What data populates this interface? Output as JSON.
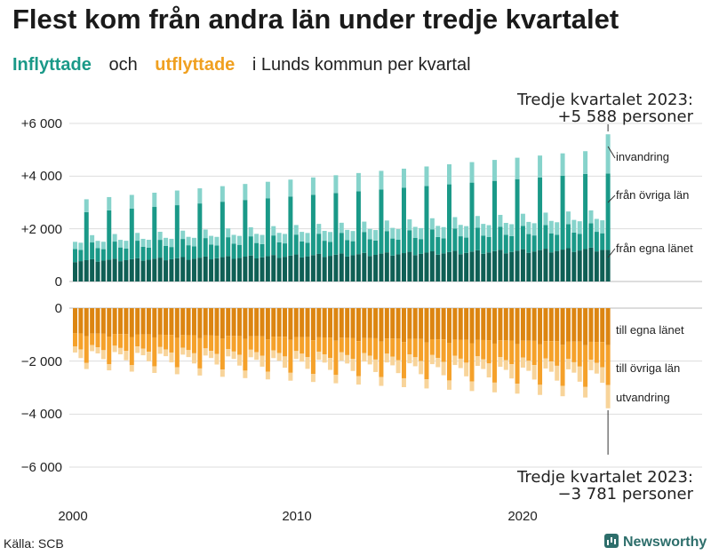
{
  "title": "Flest kom från andra län under tredje kvartalet",
  "subtitle": {
    "in_word": "Inflyttade",
    "and_word": "och",
    "out_word": "utflyttade",
    "rest": "i Lunds  kommun  per  kvartal"
  },
  "source": "Källa: SCB",
  "brand": "Newsworthy",
  "colors": {
    "in_egna": "#0f5f55",
    "in_ovriga": "#1a9988",
    "in_invandring": "#86d3cb",
    "out_egna": "#dc8511",
    "out_ovriga": "#f5a12a",
    "out_utvandring": "#f8d49a",
    "grid": "#dddddd"
  },
  "chart_data": {
    "type": "bar",
    "stacked": true,
    "x": [
      "2000 Q1",
      "2023 Q3"
    ],
    "x_tick_labels": [
      "2000",
      "2010",
      "2020"
    ],
    "y_tick_labels_top": [
      "+6 000",
      "+4 000",
      "+2 000",
      "0"
    ],
    "y_tick_labels_bottom": [
      "0",
      "−2 000",
      "−4 000",
      "−6 000"
    ],
    "ylim_in": [
      0,
      6000
    ],
    "ylim_out": [
      -6000,
      0
    ],
    "series_in_labels": [
      "från egna länet",
      "från övriga län",
      "invandring"
    ],
    "series_out_labels": [
      "till egna länet",
      "till övriga län",
      "utvandring"
    ],
    "annotation_in": {
      "line1": "Tredje kvartalet 2023:",
      "line2": "+5 588 personer",
      "total": 5588
    },
    "annotation_out": {
      "line1": "Tredje kvartalet 2023:",
      "line2": "−3 781 personer",
      "total": -3781
    },
    "trend_in": {
      "egna": [
        800,
        1250
      ],
      "ovriga_base": [
        500,
        750
      ],
      "ovriga_q3_peak": [
        1800,
        2900
      ],
      "invandring": [
        300,
        550
      ]
    },
    "trend_out": {
      "egna": [
        -1000,
        -1350
      ],
      "ovriga_base": [
        -500,
        -800
      ],
      "ovriga_q3_peak": [
        -1000,
        -1600
      ],
      "utvandring": [
        -250,
        -450
      ]
    },
    "last_quarter": {
      "in": [
        1200,
        2900,
        1488
      ],
      "out": [
        -1400,
        -1500,
        -881
      ]
    },
    "n_quarters": 95
  }
}
